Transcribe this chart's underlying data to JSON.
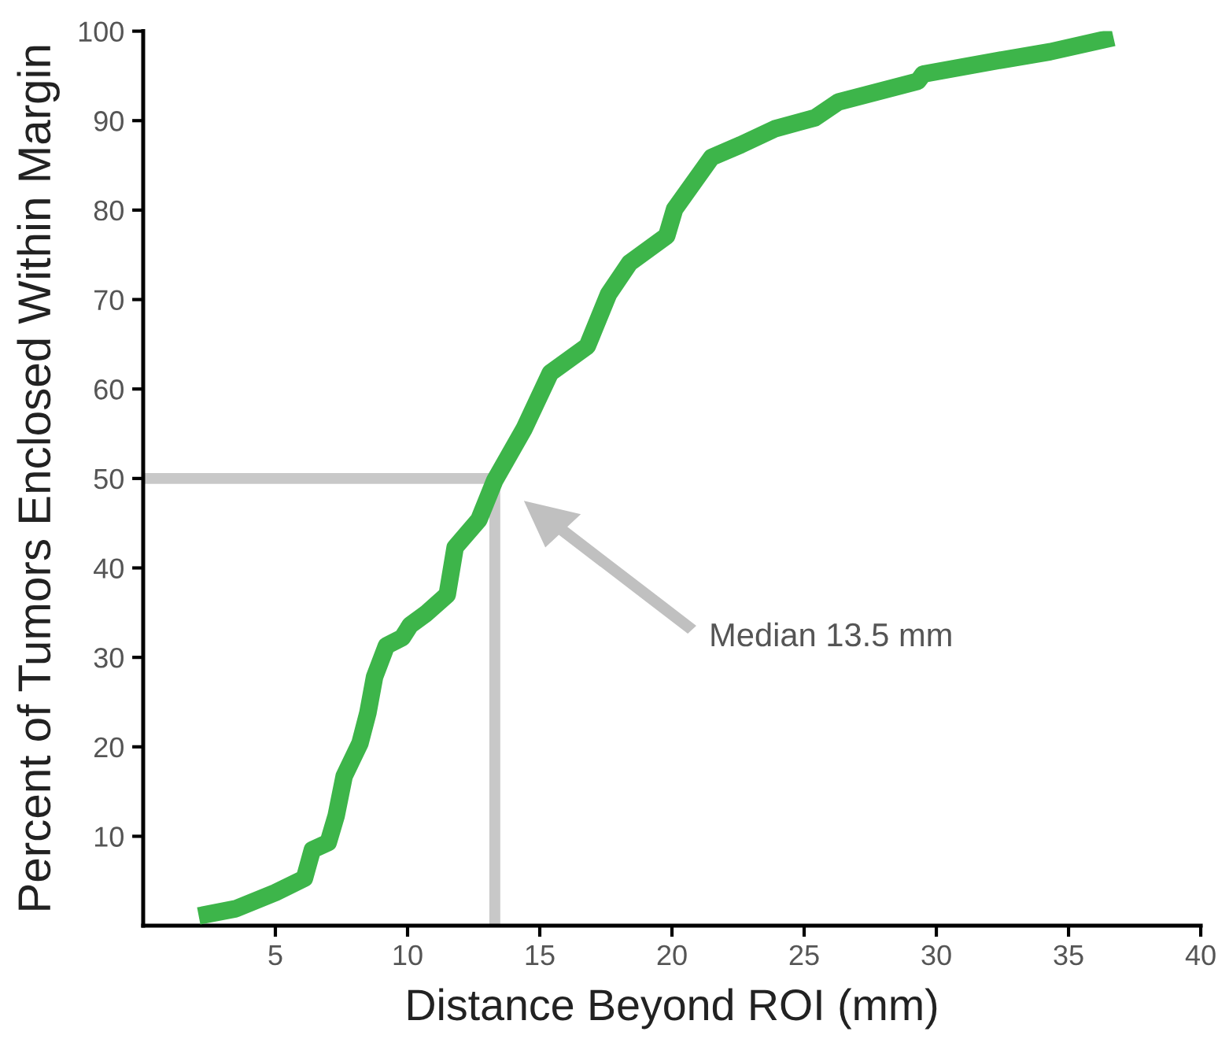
{
  "chart_data": {
    "type": "line",
    "xlabel": "Distance Beyond ROI (mm)",
    "ylabel": "Percent of Tumors Enclosed Within Margin",
    "series": [
      {
        "color": "#3db54a",
        "x": [
          2.1,
          3.5,
          5.0,
          6.1,
          6.4,
          7.0,
          7.3,
          7.6,
          8.2,
          8.5,
          8.75,
          9.2,
          9.8,
          10.1,
          10.7,
          11.5,
          11.8,
          12.7,
          13.3,
          14.4,
          15.4,
          16.8,
          17.6,
          18.4,
          19.8,
          20.1,
          21.5,
          22.6,
          23.9,
          25.4,
          26.3,
          29.3,
          29.5,
          32.3,
          34.3,
          36.7
        ],
        "values": [
          1.1,
          1.9,
          3.7,
          5.3,
          8.5,
          9.3,
          12.3,
          16.7,
          20.4,
          23.8,
          27.8,
          31.3,
          32.2,
          33.6,
          34.9,
          37.0,
          42.3,
          45.4,
          49.8,
          55.5,
          61.8,
          64.8,
          70.6,
          74.1,
          77.1,
          80.1,
          85.9,
          87.3,
          89.1,
          90.3,
          92.1,
          94.4,
          95.2,
          96.7,
          97.7,
          99.3
        ]
      }
    ],
    "xlim": [
      0,
      40
    ],
    "xticks": [
      5,
      10,
      15,
      20,
      25,
      30,
      35,
      40
    ],
    "ylim": [
      0,
      100
    ],
    "yticks": [
      10,
      20,
      30,
      40,
      50,
      60,
      70,
      80,
      90,
      100
    ],
    "ref_lines": [
      {
        "axis": "x",
        "value": 13.3,
        "color": "#c8c8c8"
      },
      {
        "axis": "y",
        "value": 50,
        "color": "#c8c8c8"
      }
    ],
    "annotations": [
      "Median 13.5 mm"
    ],
    "grid": false,
    "marker": "none",
    "line_style": "solid"
  }
}
